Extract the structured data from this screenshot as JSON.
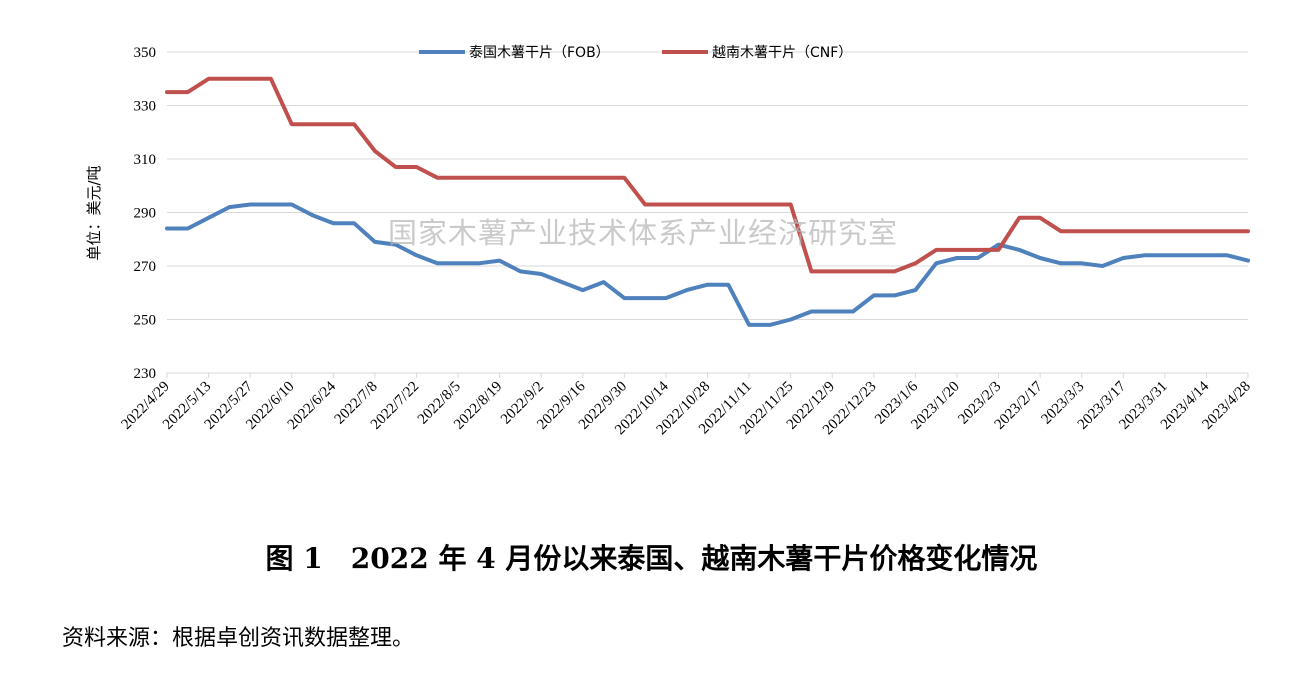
{
  "chart_data": {
    "type": "line",
    "ylabel": "单位：美元/吨",
    "ylim": [
      230,
      350
    ],
    "yticks": [
      230,
      250,
      270,
      290,
      310,
      330,
      350
    ],
    "grid": "horizontal",
    "legend_position": "top-center",
    "watermark": "国家木薯产业技术体系产业经济研究室",
    "x": [
      "2022/4/29",
      "2022/5/6",
      "2022/5/13",
      "2022/5/20",
      "2022/5/27",
      "2022/6/3",
      "2022/6/10",
      "2022/6/17",
      "2022/6/24",
      "2022/7/1",
      "2022/7/8",
      "2022/7/15",
      "2022/7/22",
      "2022/7/29",
      "2022/8/5",
      "2022/8/12",
      "2022/8/19",
      "2022/8/26",
      "2022/9/2",
      "2022/9/9",
      "2022/9/16",
      "2022/9/23",
      "2022/9/30",
      "2022/10/7",
      "2022/10/14",
      "2022/10/21",
      "2022/10/28",
      "2022/11/4",
      "2022/11/11",
      "2022/11/18",
      "2022/11/25",
      "2022/12/2",
      "2022/12/9",
      "2022/12/16",
      "2022/12/23",
      "2022/12/30",
      "2023/1/6",
      "2023/1/13",
      "2023/1/20",
      "2023/1/27",
      "2023/2/3",
      "2023/2/10",
      "2023/2/17",
      "2023/2/24",
      "2023/3/3",
      "2023/3/10",
      "2023/3/17",
      "2023/3/24",
      "2023/3/31",
      "2023/4/7",
      "2023/4/14",
      "2023/4/21",
      "2023/4/28"
    ],
    "xtick_labels": [
      "2022/4/29",
      "2022/5/13",
      "2022/5/27",
      "2022/6/10",
      "2022/6/24",
      "2022/7/8",
      "2022/7/22",
      "2022/8/5",
      "2022/8/19",
      "2022/9/2",
      "2022/9/16",
      "2022/9/30",
      "2022/10/14",
      "2022/10/28",
      "2022/11/11",
      "2022/11/25",
      "2022/12/9",
      "2022/12/23",
      "2023/1/6",
      "2023/1/20",
      "2023/2/3",
      "2023/2/17",
      "2023/3/3",
      "2023/3/17",
      "2023/3/31",
      "2023/4/14",
      "2023/4/28"
    ],
    "series": [
      {
        "name": "泰国木薯干片（FOB）",
        "color": "#4f81bd",
        "values": [
          284,
          284,
          288,
          292,
          293,
          293,
          293,
          289,
          286,
          286,
          279,
          278,
          274,
          271,
          271,
          271,
          272,
          268,
          267,
          264,
          261,
          264,
          258,
          258,
          258,
          261,
          263,
          263,
          248,
          248,
          250,
          253,
          253,
          253,
          259,
          259,
          261,
          271,
          273,
          273,
          278,
          276,
          273,
          271,
          271,
          270,
          273,
          274,
          274,
          274,
          274,
          274,
          272
        ]
      },
      {
        "name": "越南木薯干片（CNF）",
        "color": "#c0504d",
        "values": [
          335,
          335,
          340,
          340,
          340,
          340,
          323,
          323,
          323,
          323,
          313,
          307,
          307,
          303,
          303,
          303,
          303,
          303,
          303,
          303,
          303,
          303,
          303,
          293,
          293,
          293,
          293,
          293,
          293,
          293,
          293,
          268,
          268,
          268,
          268,
          268,
          271,
          276,
          276,
          276,
          276,
          288,
          288,
          283,
          283,
          283,
          283,
          283,
          283,
          283,
          283,
          283,
          283
        ]
      }
    ]
  },
  "caption": "图 1　2022 年 4 月份以来泰国、越南木薯干片价格变化情况",
  "source": "资料来源：根据卓创资讯数据整理。"
}
